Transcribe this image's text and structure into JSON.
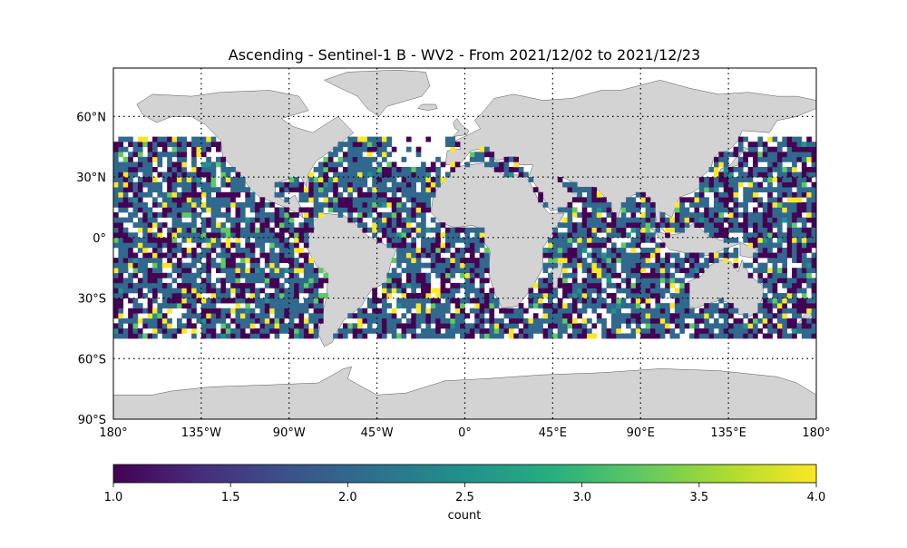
{
  "title": "Ascending - Sentinel-1 B - WV2 - From 2021/12/02 to 2021/12/23",
  "map": {
    "projection": "PlateCarree",
    "lon_range": [
      -180,
      180
    ],
    "lat_range": [
      -90,
      90
    ],
    "land_color": "#d3d3d3",
    "coastline_color": "#555555",
    "gridlines": "dotted",
    "lon_ticks": [
      {
        "value": -180,
        "label": "180°"
      },
      {
        "value": -135,
        "label": "135°W"
      },
      {
        "value": -90,
        "label": "90°W"
      },
      {
        "value": -45,
        "label": "45°W"
      },
      {
        "value": 0,
        "label": "0°"
      },
      {
        "value": 45,
        "label": "45°E"
      },
      {
        "value": 90,
        "label": "90°E"
      },
      {
        "value": 135,
        "label": "135°E"
      },
      {
        "value": 180,
        "label": "180°"
      }
    ],
    "lat_ticks": [
      {
        "value": 60,
        "label": "60°N"
      },
      {
        "value": 30,
        "label": "30°N"
      },
      {
        "value": 0,
        "label": "0°"
      },
      {
        "value": -30,
        "label": "30°S"
      },
      {
        "value": -60,
        "label": "60°S"
      },
      {
        "value": -90,
        "label": "90°S"
      }
    ],
    "data_coverage": {
      "lat_range": [
        -50,
        50
      ],
      "cell_deg": 2.5,
      "value_range": [
        1,
        4
      ],
      "note_dominant_value": 2
    }
  },
  "colorbar": {
    "label": "count",
    "colormap": "viridis",
    "range": [
      1.0,
      4.0
    ],
    "ticks": [
      {
        "value": 1.0,
        "label": "1.0"
      },
      {
        "value": 1.5,
        "label": "1.5"
      },
      {
        "value": 2.0,
        "label": "2.0"
      },
      {
        "value": 2.5,
        "label": "2.5"
      },
      {
        "value": 3.0,
        "label": "3.0"
      },
      {
        "value": 3.5,
        "label": "3.5"
      },
      {
        "value": 4.0,
        "label": "4.0"
      }
    ]
  },
  "chart_data": {
    "type": "heatmap",
    "title": "Ascending - Sentinel-1 B - WV2 - From 2021/12/02 to 2021/12/23",
    "xlabel": "",
    "ylabel": "",
    "xlim": [
      -180,
      180
    ],
    "ylim": [
      -90,
      90
    ],
    "color_label": "count",
    "color_range": [
      1,
      4
    ],
    "colors": {
      "1": "#440154",
      "2": "#31688e",
      "2.5": "#21918c",
      "3": "#5ec962",
      "4": "#fde725"
    }
  }
}
